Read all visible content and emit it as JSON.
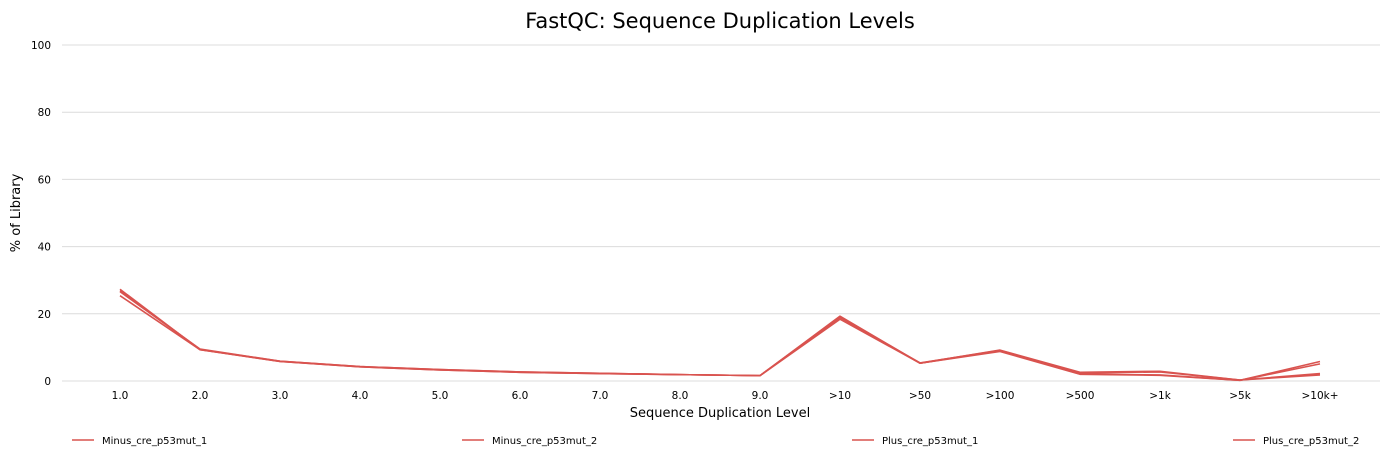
{
  "chart_data": {
    "type": "line",
    "title": "FastQC: Sequence Duplication Levels",
    "xlabel": "Sequence Duplication Level",
    "ylabel": "% of Library",
    "categories": [
      "1.0",
      "2.0",
      "3.0",
      "4.0",
      "5.0",
      "6.0",
      "7.0",
      "8.0",
      "9.0",
      ">10",
      ">50",
      ">100",
      ">500",
      ">1k",
      ">5k",
      ">10k+"
    ],
    "ylim": [
      0,
      100
    ],
    "yticks": [
      0,
      20,
      40,
      60,
      80,
      100
    ],
    "grid": true,
    "legend_position": "bottom",
    "series": [
      {
        "name": "Minus_cre_p53mut_1",
        "color": "#d9534f",
        "values": [
          27.3,
          9.3,
          5.8,
          4.2,
          3.3,
          2.6,
          2.2,
          1.9,
          1.6,
          19.3,
          5.3,
          9.2,
          2.6,
          2.9,
          0.3,
          1.8
        ]
      },
      {
        "name": "Minus_cre_p53mut_2",
        "color": "#d9534f",
        "values": [
          26.6,
          9.5,
          5.9,
          4.3,
          3.4,
          2.7,
          2.3,
          1.9,
          1.6,
          18.9,
          5.4,
          9.1,
          2.4,
          2.7,
          0.3,
          2.2
        ]
      },
      {
        "name": "Plus_cre_p53mut_1",
        "color": "#d9534f",
        "values": [
          25.4,
          9.3,
          5.9,
          4.3,
          3.4,
          2.7,
          2.3,
          1.9,
          1.6,
          18.4,
          5.3,
          8.8,
          2.0,
          1.7,
          0.2,
          5.8
        ]
      },
      {
        "name": "Plus_cre_p53mut_2",
        "color": "#d9534f",
        "values": [
          26.9,
          9.4,
          5.8,
          4.2,
          3.3,
          2.6,
          2.2,
          1.9,
          1.6,
          19.1,
          5.3,
          9.0,
          2.1,
          1.8,
          0.2,
          5.1
        ]
      }
    ]
  }
}
